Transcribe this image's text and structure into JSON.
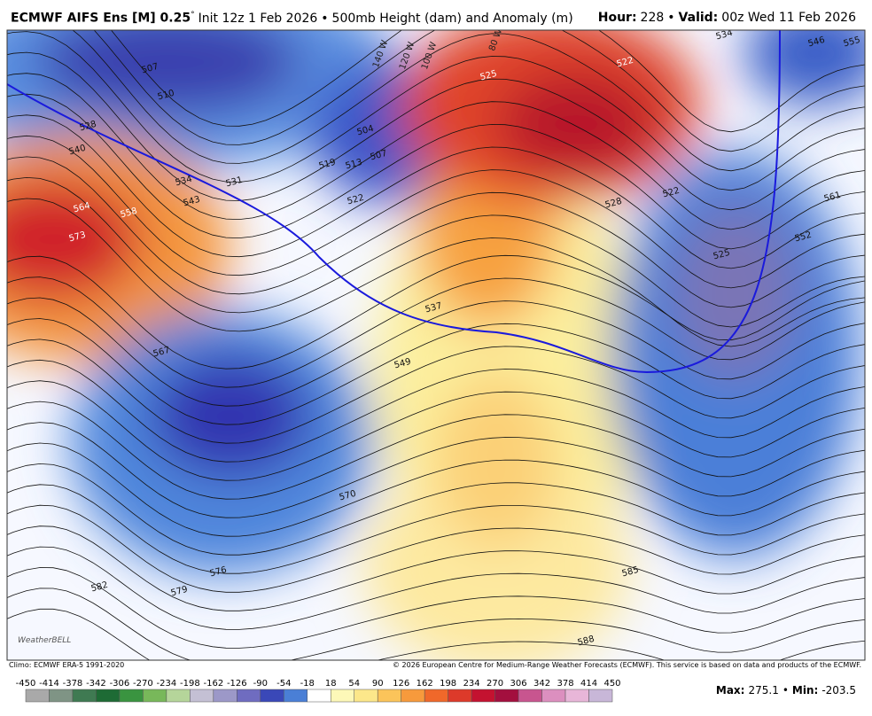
{
  "header": {
    "title_bold": "ECMWF AIFS Ens [M] 0.25",
    "title_degree": "°",
    "title_init": "Init 12z 1 Feb 2026",
    "title_sep": "•",
    "title_field": "500mb Height (dam) and Anomaly (m)",
    "hour_label": "Hour:",
    "hour_value": "228",
    "hv_sep": "•",
    "valid_label": "Valid:",
    "valid_value": "00z Wed 11 Feb 2026"
  },
  "map": {
    "contour_labels": [
      507,
      510,
      528,
      540,
      534,
      531,
      543,
      564,
      558,
      573,
      504,
      507,
      513,
      519,
      522,
      537,
      549,
      567,
      570,
      576,
      579,
      582,
      585,
      588,
      525,
      522,
      528,
      522,
      525,
      534,
      546,
      555,
      561,
      552
    ],
    "longitude_labels": [
      "140 W",
      "120 W",
      "100 W",
      "80 W"
    ],
    "logo": "WeatherBELL"
  },
  "footer": {
    "climo": "Climo: ECMWF ERA-5 1991-2020",
    "copyright": "© 2026 European Centre for Medium-Range Weather Forecasts (ECMWF). This service is based on data and products of the ECMWF.",
    "max_label": "Max:",
    "max_value": "275.1",
    "sep": "•",
    "min_label": "Min:",
    "min_value": "-203.5"
  },
  "colorbar": {
    "labels": [
      -450,
      -414,
      -378,
      -342,
      -306,
      -270,
      -234,
      -198,
      -162,
      -126,
      -90,
      -54,
      -18,
      18,
      54,
      90,
      126,
      162,
      198,
      234,
      270,
      306,
      342,
      378,
      414,
      450
    ],
    "colors": [
      "#a9a9a9",
      "#7f9485",
      "#3f7a52",
      "#1e6b35",
      "#3a9440",
      "#78b85a",
      "#b5d59a",
      "#c4c0d4",
      "#9c98c8",
      "#6f6cc0",
      "#3a48b8",
      "#4a7fd6",
      "#ffffff",
      "#fdf8b8",
      "#fce78a",
      "#fbc45a",
      "#f79a3c",
      "#f0682a",
      "#dd3a2a",
      "#c41230",
      "#a30f3e",
      "#c8558f",
      "#dc8fbf",
      "#e8b6d8",
      "#c8b7d8"
    ]
  }
}
